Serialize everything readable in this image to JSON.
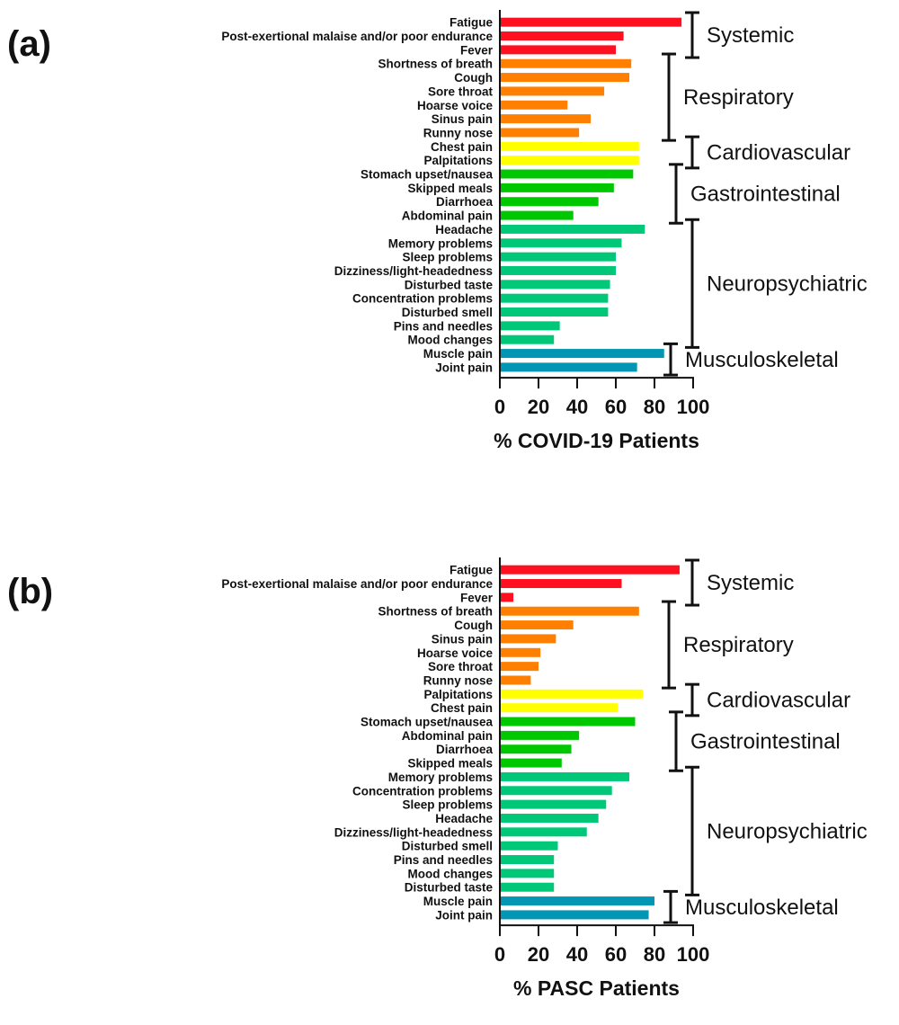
{
  "colors": {
    "Systemic": "#FF1020",
    "Respiratory": "#FF7F00",
    "Cardiovascular": "#FFFF00",
    "Gastrointestinal": "#00C800",
    "Neuropsychiatric": "#00C878",
    "Musculoskeletal": "#0096B4"
  },
  "chart_data": [
    {
      "type": "bar",
      "orientation": "horizontal",
      "panel_label": "(a)",
      "xlabel": "% COVID-19 Patients",
      "xlim": [
        0,
        100
      ],
      "xticks": [
        "0",
        "20",
        "40",
        "60",
        "80",
        "100"
      ],
      "categories": [
        "Fatigue",
        "Post-exertional malaise and/or poor endurance",
        "Fever",
        "Shortness of breath",
        "Cough",
        "Sore throat",
        "Hoarse voice",
        "Sinus pain",
        "Runny nose",
        "Chest pain",
        "Palpitations",
        "Stomach upset/nausea",
        "Skipped meals",
        "Diarrhoea",
        "Abdominal pain",
        "Headache",
        "Memory problems",
        "Sleep problems",
        "Dizziness/light-headedness",
        "Disturbed taste",
        "Concentration problems",
        "Disturbed smell",
        "Pins and needles",
        "Mood changes",
        "Muscle pain",
        "Joint pain"
      ],
      "values": [
        94,
        64,
        60,
        68,
        67,
        54,
        35,
        47,
        41,
        72,
        72,
        69,
        59,
        51,
        38,
        75,
        63,
        60,
        60,
        57,
        56,
        56,
        31,
        28,
        85,
        71
      ],
      "groups": [
        {
          "name": "Systemic",
          "count": 3
        },
        {
          "name": "Respiratory",
          "count": 6
        },
        {
          "name": "Cardiovascular",
          "count": 2
        },
        {
          "name": "Gastrointestinal",
          "count": 4
        },
        {
          "name": "Neuropsychiatric",
          "count": 9
        },
        {
          "name": "Musculoskeletal",
          "count": 2
        }
      ]
    },
    {
      "type": "bar",
      "orientation": "horizontal",
      "panel_label": "(b)",
      "xlabel": "% PASC Patients",
      "xlim": [
        0,
        100
      ],
      "xticks": [
        "0",
        "20",
        "40",
        "60",
        "80",
        "100"
      ],
      "categories": [
        "Fatigue",
        "Post-exertional malaise and/or poor endurance",
        "Fever",
        "Shortness of breath",
        "Cough",
        "Sinus pain",
        "Hoarse voice",
        "Sore throat",
        "Runny nose",
        "Palpitations",
        "Chest pain",
        "Stomach upset/nausea",
        "Abdominal pain",
        "Diarrhoea",
        "Skipped meals",
        "Memory problems",
        "Concentration problems",
        "Sleep problems",
        "Headache",
        "Dizziness/light-headedness",
        "Disturbed smell",
        "Pins and needles",
        "Mood changes",
        "Disturbed taste",
        "Muscle pain",
        "Joint pain"
      ],
      "values": [
        93,
        63,
        7,
        72,
        38,
        29,
        21,
        20,
        16,
        74,
        61,
        70,
        41,
        37,
        32,
        67,
        58,
        55,
        51,
        45,
        30,
        28,
        28,
        28,
        80,
        77
      ],
      "groups": [
        {
          "name": "Systemic",
          "count": 3
        },
        {
          "name": "Respiratory",
          "count": 6
        },
        {
          "name": "Cardiovascular",
          "count": 2
        },
        {
          "name": "Gastrointestinal",
          "count": 4
        },
        {
          "name": "Neuropsychiatric",
          "count": 9
        },
        {
          "name": "Musculoskeletal",
          "count": 2
        }
      ]
    }
  ]
}
